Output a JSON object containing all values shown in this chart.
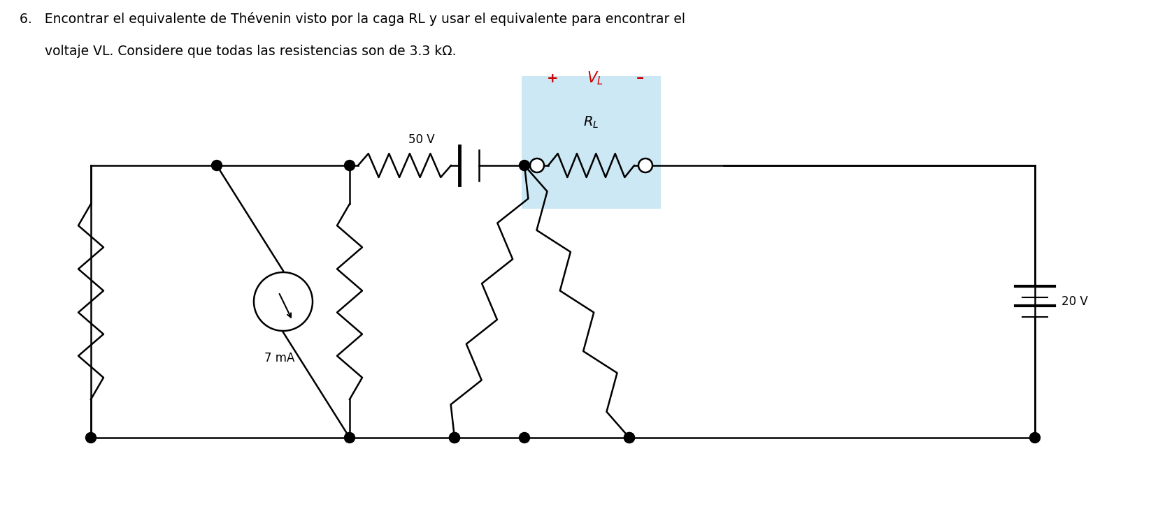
{
  "title_line1": "6.   Encontrar el equivalente de Thévenin visto por la caga RL y usar el equivalente para encontrar el",
  "title_line2": "      voltaje VL. Considere que todas las resistencias son de 3.3 kΩ.",
  "voltage_50": "50 V",
  "current_7mA": "7 mA",
  "voltage_20": "20 V",
  "rl_bg_color": "#cce8f4",
  "line_color": "#000000",
  "text_color": "#000000",
  "red_color": "#cc0000",
  "bg_color": "#ffffff",
  "lw": 1.8
}
